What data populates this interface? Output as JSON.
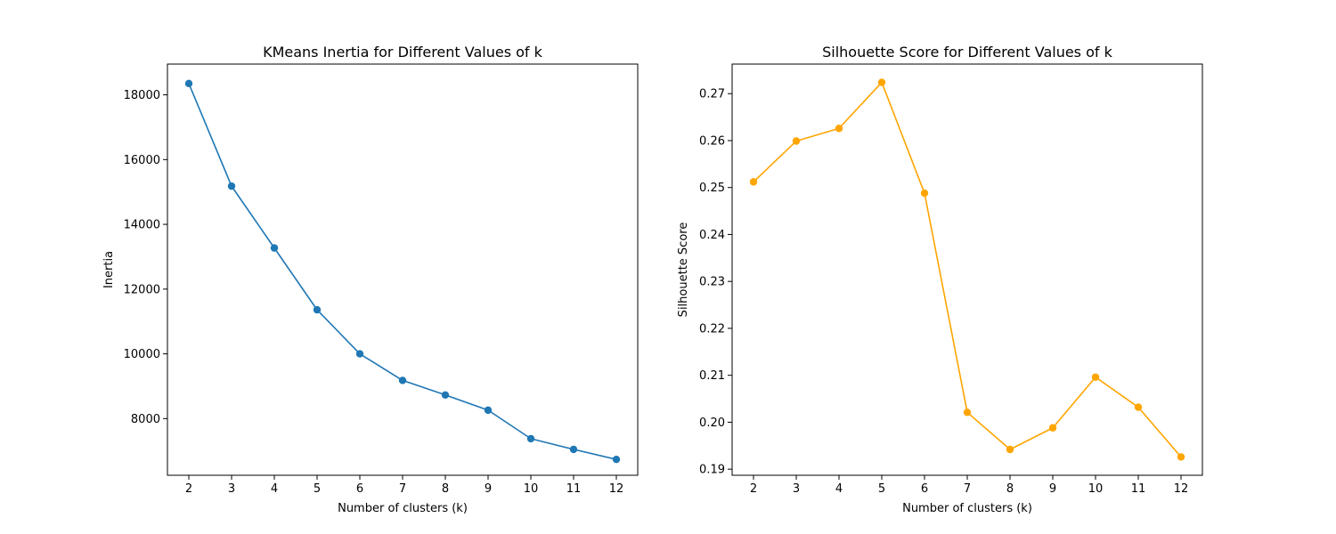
{
  "chart_data": [
    {
      "type": "line",
      "title": "KMeans Inertia for Different Values of k",
      "xlabel": "Number of clusters (k)",
      "ylabel": "Inertia",
      "x": [
        2,
        3,
        4,
        5,
        6,
        7,
        8,
        9,
        10,
        11,
        12
      ],
      "series": [
        {
          "values": [
            18350,
            15180,
            13270,
            11360,
            10000,
            9180,
            8730,
            8260,
            7380,
            7050,
            6740
          ],
          "color": "#1f77b4",
          "marker": "circle"
        }
      ],
      "xlim": [
        1.5,
        12.5
      ],
      "ylim": [
        6250,
        18950
      ],
      "xticks": [
        2,
        3,
        4,
        5,
        6,
        7,
        8,
        9,
        10,
        11,
        12
      ],
      "yticks": [
        8000,
        10000,
        12000,
        14000,
        16000,
        18000
      ],
      "ytick_labels": [
        "8000",
        "10000",
        "12000",
        "14000",
        "16000",
        "18000"
      ],
      "grid": false,
      "legend": "none"
    },
    {
      "type": "line",
      "title": "Silhouette Score for Different Values of k",
      "xlabel": "Number of clusters (k)",
      "ylabel": "Silhouette Score",
      "x": [
        2,
        3,
        4,
        5,
        6,
        7,
        8,
        9,
        10,
        11,
        12
      ],
      "series": [
        {
          "values": [
            0.2512,
            0.2599,
            0.2626,
            0.2724,
            0.2488,
            0.2021,
            0.1942,
            0.1988,
            0.2096,
            0.2032,
            0.1926
          ],
          "color": "#ffa500",
          "marker": "circle"
        }
      ],
      "xlim": [
        1.5,
        12.5
      ],
      "ylim": [
        0.1887,
        0.2763
      ],
      "xticks": [
        2,
        3,
        4,
        5,
        6,
        7,
        8,
        9,
        10,
        11,
        12
      ],
      "yticks": [
        0.19,
        0.2,
        0.21,
        0.22,
        0.23,
        0.24,
        0.25,
        0.26,
        0.27
      ],
      "ytick_labels": [
        "0.19",
        "0.20",
        "0.21",
        "0.22",
        "0.23",
        "0.24",
        "0.25",
        "0.26",
        "0.27"
      ],
      "grid": false,
      "legend": "none"
    }
  ]
}
